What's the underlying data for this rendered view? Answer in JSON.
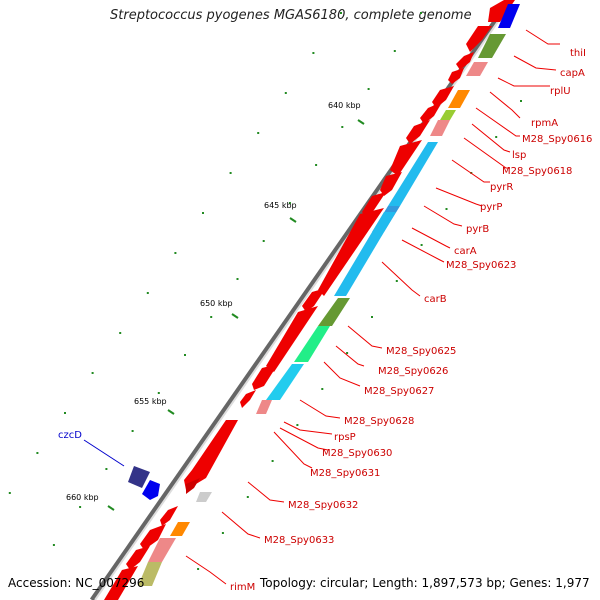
{
  "title": "Streptococcus pyogenes MGAS6180, complete genome",
  "footer": {
    "accession": "Accession: NC_007296",
    "topology": "Topology: circular; Length: 1,897,573 bp; Genes: 1,977"
  },
  "kbp_labels": [
    "640 kbp",
    "645 kbp",
    "650 kbp",
    "655 kbp",
    "660 kbp"
  ],
  "gene_labels": [
    "thiI",
    "capA",
    "rplU",
    "rpmA",
    "M28_Spy0616",
    "lsp",
    "M28_Spy0618",
    "pyrR",
    "pyrP",
    "pyrB",
    "carA",
    "M28_Spy0623",
    "carB",
    "M28_Spy0625",
    "M28_Spy0626",
    "M28_Spy0627",
    "M28_Spy0628",
    "rpsP",
    "M28_Spy0630",
    "M28_Spy0631",
    "M28_Spy0632",
    "M28_Spy0633",
    "rimM",
    "czcD"
  ],
  "colors": {
    "forward_gene": "#ee0000",
    "label_red": "#cc0000",
    "label_blue": "#0000cc",
    "tick_green": "#228b22",
    "backbone": "#888888"
  }
}
